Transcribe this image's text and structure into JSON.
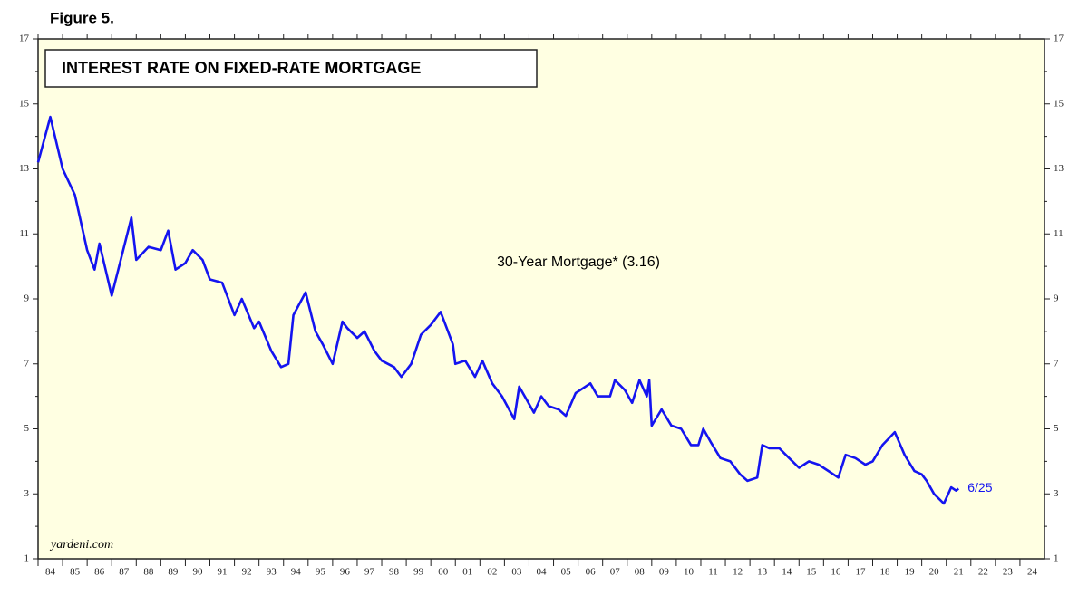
{
  "figure_label": "Figure 5.",
  "chart_data": {
    "type": "line",
    "title": "INTEREST RATE ON FIXED-RATE MORTGAGE",
    "annotation": "30-Year Mortgage* (3.16)",
    "end_label": "6/25",
    "source": "yardeni.com",
    "xlim": [
      1984,
      2025
    ],
    "xticks": [
      {
        "value": 1984,
        "label": "84"
      },
      {
        "value": 1985,
        "label": "85"
      },
      {
        "value": 1986,
        "label": "86"
      },
      {
        "value": 1987,
        "label": "87"
      },
      {
        "value": 1988,
        "label": "88"
      },
      {
        "value": 1989,
        "label": "89"
      },
      {
        "value": 1990,
        "label": "90"
      },
      {
        "value": 1991,
        "label": "91"
      },
      {
        "value": 1992,
        "label": "92"
      },
      {
        "value": 1993,
        "label": "93"
      },
      {
        "value": 1994,
        "label": "94"
      },
      {
        "value": 1995,
        "label": "95"
      },
      {
        "value": 1996,
        "label": "96"
      },
      {
        "value": 1997,
        "label": "97"
      },
      {
        "value": 1998,
        "label": "98"
      },
      {
        "value": 1999,
        "label": "99"
      },
      {
        "value": 2000,
        "label": "00"
      },
      {
        "value": 2001,
        "label": "01"
      },
      {
        "value": 2002,
        "label": "02"
      },
      {
        "value": 2003,
        "label": "03"
      },
      {
        "value": 2004,
        "label": "04"
      },
      {
        "value": 2005,
        "label": "05"
      },
      {
        "value": 2006,
        "label": "06"
      },
      {
        "value": 2007,
        "label": "07"
      },
      {
        "value": 2008,
        "label": "08"
      },
      {
        "value": 2009,
        "label": "09"
      },
      {
        "value": 2010,
        "label": "10"
      },
      {
        "value": 2011,
        "label": "11"
      },
      {
        "value": 2012,
        "label": "12"
      },
      {
        "value": 2013,
        "label": "13"
      },
      {
        "value": 2014,
        "label": "14"
      },
      {
        "value": 2015,
        "label": "15"
      },
      {
        "value": 2016,
        "label": "16"
      },
      {
        "value": 2017,
        "label": "17"
      },
      {
        "value": 2018,
        "label": "18"
      },
      {
        "value": 2019,
        "label": "19"
      },
      {
        "value": 2020,
        "label": "20"
      },
      {
        "value": 2021,
        "label": "21"
      },
      {
        "value": 2022,
        "label": "22"
      },
      {
        "value": 2023,
        "label": "23"
      },
      {
        "value": 2024,
        "label": "24"
      }
    ],
    "ylim": [
      1,
      17
    ],
    "yticks": [
      1,
      3,
      5,
      7,
      9,
      11,
      13,
      15,
      17
    ],
    "series": [
      {
        "color": "#1414f0",
        "x": [
          1984.0,
          1984.5,
          1985.0,
          1985.5,
          1986.0,
          1986.3,
          1986.5,
          1987.0,
          1987.5,
          1987.8,
          1988.0,
          1988.5,
          1989.0,
          1989.3,
          1989.6,
          1990.0,
          1990.3,
          1990.7,
          1991.0,
          1991.5,
          1992.0,
          1992.3,
          1992.8,
          1993.0,
          1993.5,
          1993.9,
          1994.2,
          1994.4,
          1994.9,
          1995.3,
          1995.6,
          1996.0,
          1996.4,
          1996.6,
          1997.0,
          1997.3,
          1997.7,
          1998.0,
          1998.5,
          1998.8,
          1999.2,
          1999.6,
          2000.0,
          2000.4,
          2000.9,
          2001.0,
          2001.4,
          2001.8,
          2002.1,
          2002.5,
          2002.9,
          2003.4,
          2003.6,
          2003.9,
          2004.2,
          2004.5,
          2004.8,
          2005.2,
          2005.5,
          2005.9,
          2006.5,
          2006.8,
          2007.3,
          2007.5,
          2007.9,
          2008.2,
          2008.5,
          2008.8,
          2008.9,
          2009.0,
          2009.4,
          2009.8,
          2010.2,
          2010.6,
          2010.9,
          2011.1,
          2011.4,
          2011.8,
          2012.2,
          2012.6,
          2012.9,
          2013.3,
          2013.5,
          2013.8,
          2014.2,
          2014.6,
          2015.0,
          2015.4,
          2015.8,
          2016.2,
          2016.6,
          2016.9,
          2017.3,
          2017.7,
          2018.0,
          2018.4,
          2018.9,
          2019.3,
          2019.7,
          2020.0,
          2020.2,
          2020.5,
          2020.9,
          2021.2,
          2021.4,
          2021.5
        ],
        "values": [
          13.2,
          14.6,
          13.0,
          12.2,
          10.5,
          9.9,
          10.7,
          9.1,
          10.6,
          11.5,
          10.2,
          10.6,
          10.5,
          11.1,
          9.9,
          10.1,
          10.5,
          10.2,
          9.6,
          9.5,
          8.5,
          9.0,
          8.1,
          8.3,
          7.4,
          6.9,
          7.0,
          8.5,
          9.2,
          8.0,
          7.6,
          7.0,
          8.3,
          8.1,
          7.8,
          8.0,
          7.4,
          7.1,
          6.9,
          6.6,
          7.0,
          7.9,
          8.2,
          8.6,
          7.6,
          7.0,
          7.1,
          6.6,
          7.1,
          6.4,
          6.0,
          5.3,
          6.3,
          5.9,
          5.5,
          6.0,
          5.7,
          5.6,
          5.4,
          6.1,
          6.4,
          6.0,
          6.0,
          6.5,
          6.2,
          5.8,
          6.5,
          6.0,
          6.5,
          5.1,
          5.6,
          5.1,
          5.0,
          4.5,
          4.5,
          5.0,
          4.6,
          4.1,
          4.0,
          3.6,
          3.4,
          3.5,
          4.5,
          4.4,
          4.4,
          4.1,
          3.8,
          4.0,
          3.9,
          3.7,
          3.5,
          4.2,
          4.1,
          3.9,
          4.0,
          4.5,
          4.9,
          4.2,
          3.7,
          3.6,
          3.4,
          3.0,
          2.7,
          3.2,
          3.1,
          3.16
        ]
      }
    ]
  }
}
